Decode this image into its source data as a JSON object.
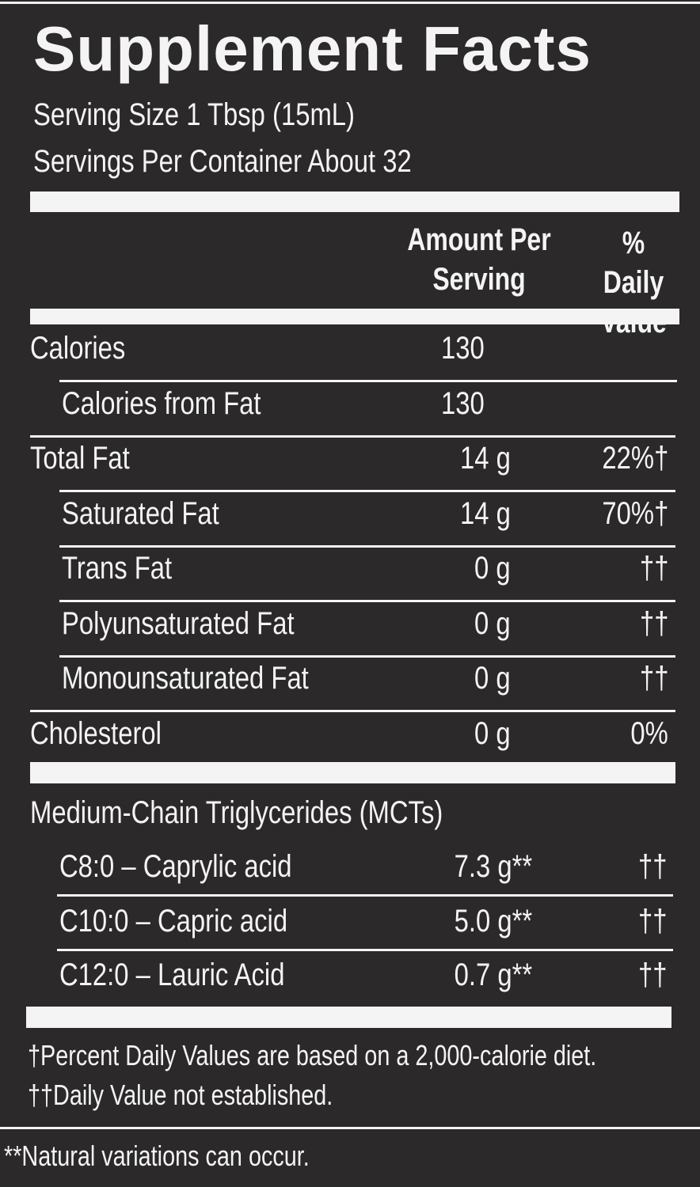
{
  "title": "Supplement Facts",
  "serving": [
    "Serving Size 1 Tbsp (15mL)",
    "Servings Per Container About 32"
  ],
  "header": {
    "amount": "Amount Per Serving",
    "daily_value": "% Daily Value"
  },
  "rows": [
    {
      "name": "Calories",
      "amount": "130"
    },
    {
      "name": "Calories from Fat",
      "amount": "130"
    },
    {
      "name": "Total Fat",
      "amount": "14 g",
      "daily_value": "22%†"
    },
    {
      "name": "Saturated Fat",
      "amount": "14 g",
      "daily_value": "70%†"
    },
    {
      "name": "Trans Fat",
      "amount": "0 g",
      "daily_value": "††"
    },
    {
      "name": "Polyunsaturated Fat",
      "amount": "0 g",
      "daily_value": "††"
    },
    {
      "name": "Monounsaturated Fat",
      "amount": "0 g",
      "daily_value": "††"
    },
    {
      "name": "Cholesterol",
      "amount": "0 g",
      "daily_value": "0%"
    }
  ],
  "mct": {
    "heading": "Medium-Chain Triglycerides (MCTs)",
    "rows": [
      {
        "name": "C8:0 – Caprylic acid",
        "amount": "7.3 g**",
        "daily_value": "††"
      },
      {
        "name": "C10:0 – Capric acid",
        "amount": "5.0 g**",
        "daily_value": "††"
      },
      {
        "name": "C12:0 – Lauric Acid",
        "amount": "0.7 g**",
        "daily_value": "††"
      }
    ]
  },
  "footnotes": [
    "†Percent Daily Values are based on a 2,000-calorie diet.",
    "††Daily Value not established."
  ],
  "note": "**Natural variations can occur."
}
